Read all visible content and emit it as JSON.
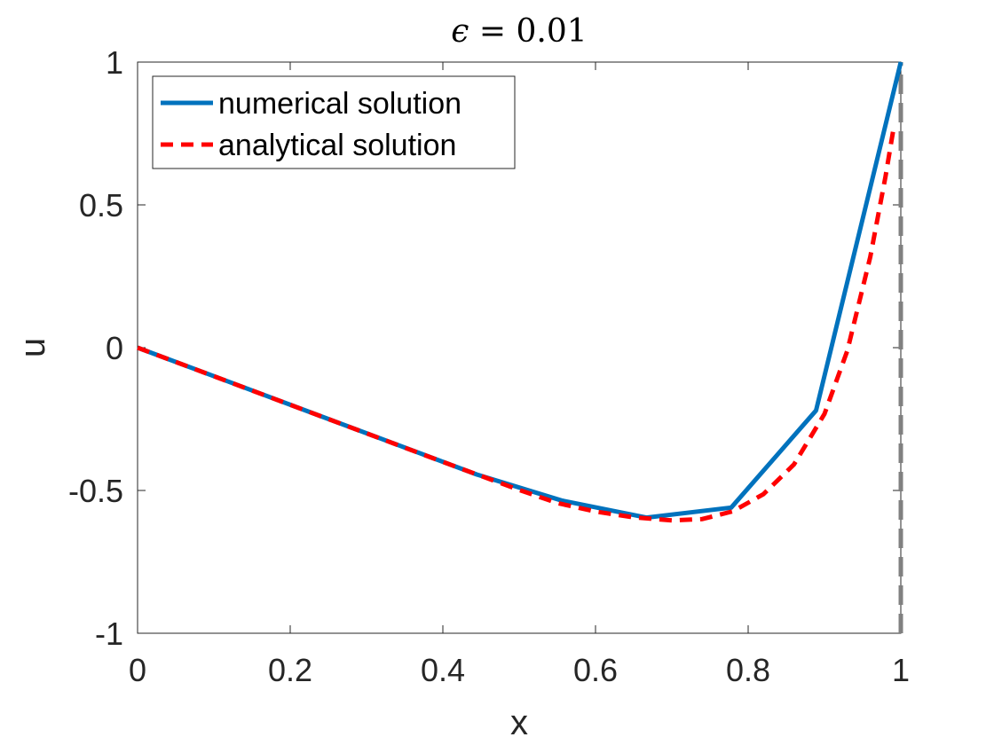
{
  "chart_data": {
    "type": "line",
    "title_prefix": "ϵ",
    "title_suffix": " = 0.01",
    "xlabel": "x",
    "ylabel": "u",
    "xlim": [
      0,
      1
    ],
    "ylim": [
      -1,
      1
    ],
    "xticks": [
      0,
      0.2,
      0.4,
      0.6,
      0.8,
      1
    ],
    "xtick_labels": [
      "0",
      "0.2",
      "0.4",
      "0.6",
      "0.8",
      "1"
    ],
    "yticks": [
      -1,
      -0.5,
      0,
      0.5,
      1
    ],
    "ytick_labels": [
      "-1",
      "-0.5",
      "0",
      "0.5",
      "1"
    ],
    "grid": false,
    "legend_position": "top-left",
    "series": [
      {
        "name": "numerical solution",
        "color": "#0072BD",
        "style": "solid",
        "x": [
          0,
          0.1111,
          0.2222,
          0.3333,
          0.4444,
          0.5556,
          0.6667,
          0.7778,
          0.8889,
          1.0
        ],
        "y": [
          0,
          -0.111,
          -0.222,
          -0.333,
          -0.444,
          -0.535,
          -0.595,
          -0.56,
          -0.22,
          1.0
        ]
      },
      {
        "name": "analytical solution",
        "color": "#FF0000",
        "style": "dashed",
        "x": [
          0,
          0.1,
          0.2,
          0.3,
          0.4,
          0.5,
          0.55,
          0.6,
          0.65,
          0.7,
          0.74,
          0.78,
          0.82,
          0.86,
          0.9,
          0.93,
          0.96,
          0.98,
          0.99
        ],
        "y": [
          0,
          -0.1,
          -0.2,
          -0.3,
          -0.4,
          -0.498,
          -0.544,
          -0.574,
          -0.594,
          -0.605,
          -0.6,
          -0.573,
          -0.513,
          -0.409,
          -0.232,
          -0.01,
          0.318,
          0.6,
          0.76
        ]
      },
      {
        "name": "",
        "color": "#808080",
        "style": "dashed-vertical",
        "x": [
          1.0,
          1.0
        ],
        "y": [
          -1,
          1
        ]
      }
    ]
  }
}
